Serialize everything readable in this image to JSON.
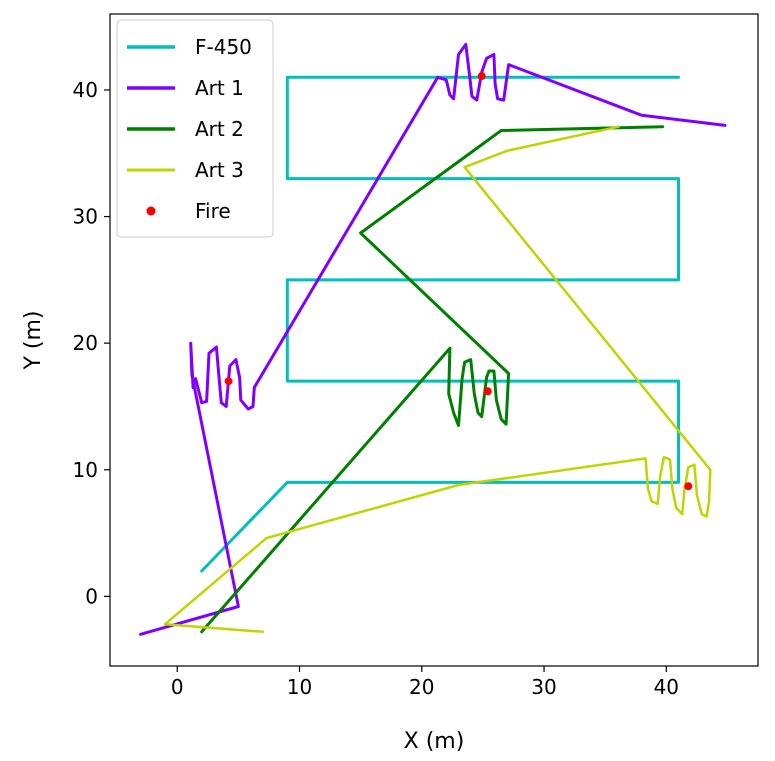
{
  "chart_data": {
    "type": "line",
    "title": "",
    "xlabel": "X (m)",
    "ylabel": "Y (m)",
    "xlim": [
      -5.5,
      47.5
    ],
    "ylim": [
      -5.5,
      46
    ],
    "xticks": [
      0,
      10,
      20,
      30,
      40
    ],
    "yticks": [
      0,
      10,
      20,
      30,
      40
    ],
    "grid": false,
    "legend_position": "top-left",
    "series": [
      {
        "name": "F-450",
        "color": "#00bfbf",
        "width": 3,
        "points": [
          [
            2,
            2
          ],
          [
            9,
            9
          ],
          [
            41,
            9
          ],
          [
            41,
            17
          ],
          [
            9,
            17
          ],
          [
            9,
            25
          ],
          [
            41,
            25
          ],
          [
            41,
            33
          ],
          [
            9,
            33
          ],
          [
            9,
            41
          ],
          [
            41,
            41
          ]
        ]
      },
      {
        "name": "Art 1",
        "color": "#7f00ff",
        "width": 3,
        "points": [
          [
            -3,
            -3
          ],
          [
            5,
            -0.8
          ],
          [
            1.2,
            17.5
          ],
          [
            1.1,
            20
          ],
          [
            1.3,
            16.5
          ],
          [
            1.5,
            17.2
          ],
          [
            2,
            15.3
          ],
          [
            2.4,
            15.4
          ],
          [
            2.6,
            19.2
          ],
          [
            3.2,
            19.7
          ],
          [
            3.4,
            17.5
          ],
          [
            3.6,
            15.3
          ],
          [
            4,
            15
          ],
          [
            4.3,
            18.2
          ],
          [
            4.8,
            18.7
          ],
          [
            5.1,
            17.3
          ],
          [
            5.2,
            15.5
          ],
          [
            5.8,
            14.8
          ],
          [
            6.2,
            15
          ],
          [
            6.3,
            16.5
          ],
          [
            21.3,
            41
          ],
          [
            22,
            40.8
          ],
          [
            22.3,
            39.6
          ],
          [
            22.6,
            39.3
          ],
          [
            23,
            42.8
          ],
          [
            23.6,
            43.6
          ],
          [
            23.9,
            41.2
          ],
          [
            24.1,
            39.5
          ],
          [
            24.5,
            39.2
          ],
          [
            24.9,
            41.4
          ],
          [
            25.3,
            42.5
          ],
          [
            25.9,
            42.8
          ],
          [
            26,
            40.5
          ],
          [
            26.2,
            39.3
          ],
          [
            26.7,
            39.2
          ],
          [
            27.1,
            42
          ],
          [
            38,
            38
          ],
          [
            44.8,
            37.2
          ]
        ]
      },
      {
        "name": "Art 2",
        "color": "#008000",
        "width": 3,
        "points": [
          [
            2,
            -2.8
          ],
          [
            22.3,
            19.6
          ],
          [
            22.2,
            16
          ],
          [
            22.6,
            14.5
          ],
          [
            23,
            13.5
          ],
          [
            23.3,
            17.2
          ],
          [
            23.5,
            18.5
          ],
          [
            24,
            18.7
          ],
          [
            24.3,
            16
          ],
          [
            24.6,
            14.5
          ],
          [
            24.9,
            14.2
          ],
          [
            25.3,
            17.3
          ],
          [
            25.5,
            17.8
          ],
          [
            25.9,
            17.8
          ],
          [
            26.1,
            15.5
          ],
          [
            26.5,
            14
          ],
          [
            26.9,
            13.6
          ],
          [
            27.1,
            17.6
          ],
          [
            15,
            28.7
          ],
          [
            26.5,
            36.8
          ],
          [
            39.7,
            37.1
          ]
        ]
      },
      {
        "name": "Art 3",
        "color": "#bfd400",
        "width": 2.5,
        "points": [
          [
            7,
            -2.8
          ],
          [
            -1,
            -2.2
          ],
          [
            7.3,
            4.6
          ],
          [
            23,
            8.8
          ],
          [
            38.3,
            10.9
          ],
          [
            38.5,
            8.5
          ],
          [
            38.8,
            7.5
          ],
          [
            39.3,
            7.3
          ],
          [
            39.5,
            9.5
          ],
          [
            39.8,
            11
          ],
          [
            40.3,
            10.8
          ],
          [
            40.5,
            8.5
          ],
          [
            40.8,
            7
          ],
          [
            41.3,
            6.5
          ],
          [
            41.5,
            8.5
          ],
          [
            41.8,
            10.2
          ],
          [
            42.3,
            10.4
          ],
          [
            42.5,
            8
          ],
          [
            42.9,
            6.5
          ],
          [
            43.3,
            6.3
          ],
          [
            43.5,
            7.5
          ],
          [
            43.6,
            10
          ],
          [
            23.5,
            33.9
          ],
          [
            27,
            35.2
          ],
          [
            36.1,
            37.1
          ]
        ]
      }
    ],
    "scatter": {
      "name": "Fire",
      "color": "#ff0000",
      "points": [
        [
          4.2,
          17
        ],
        [
          24.9,
          41.1
        ],
        [
          25.4,
          16.2
        ],
        [
          41.8,
          8.7
        ]
      ]
    }
  }
}
